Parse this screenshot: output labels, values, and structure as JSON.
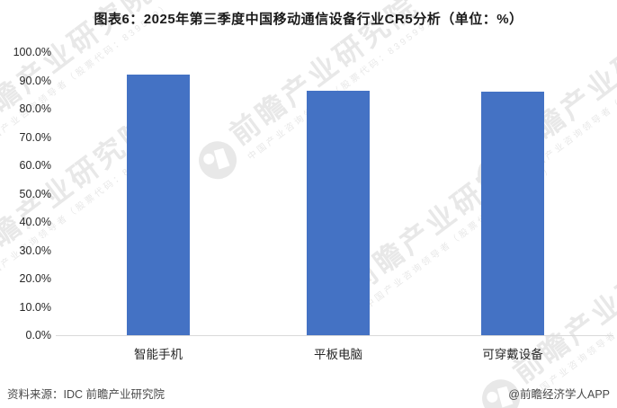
{
  "chart_data": {
    "type": "bar",
    "title": "图表6：2025年第三季度中国移动通信设备行业CR5分析（单位：%）",
    "categories": [
      "智能手机",
      "平板电脑",
      "可穿戴设备"
    ],
    "values": [
      92.0,
      86.2,
      86.0
    ],
    "xlabel": "",
    "ylabel": "",
    "ylim": [
      0,
      100
    ],
    "ytick_step": 10,
    "grid": false,
    "legend": "none",
    "bar_color": "#4472C4",
    "axis_line_color": "#D9D9D9"
  },
  "y_axis": {
    "labels": [
      "100.0%",
      "90.0%",
      "80.0%",
      "70.0%",
      "60.0%",
      "50.0%",
      "40.0%",
      "30.0%",
      "20.0%",
      "10.0%",
      "0.0%"
    ]
  },
  "footer": {
    "source": "资料来源：IDC  前瞻产业研究院",
    "credit": "@前瞻经济学人APP"
  },
  "watermark": {
    "brand": "前瞻产业研究院",
    "tagline": "中国产业咨询领导者（股票代码：839599）",
    "color": "#e8e8e8"
  }
}
